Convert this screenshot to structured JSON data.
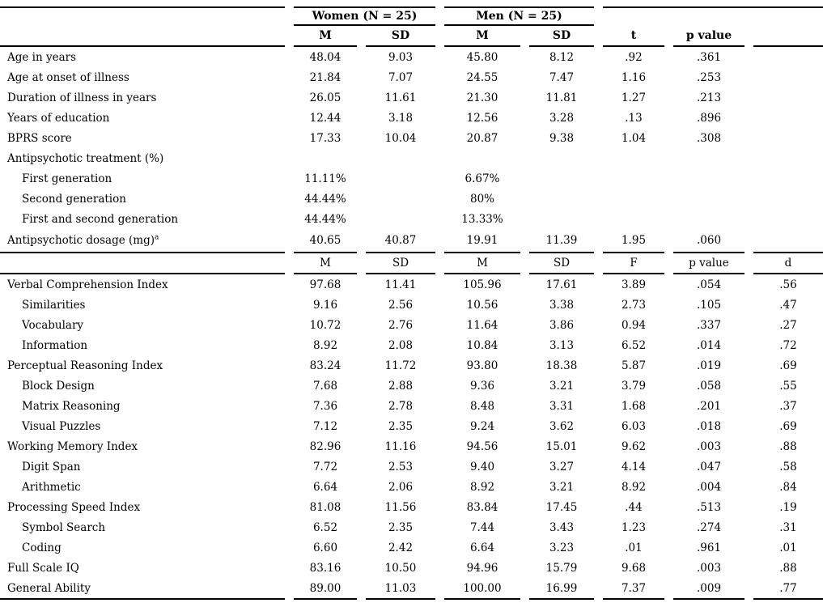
{
  "table": {
    "groups": {
      "women": "Women (N = 25)",
      "men": "Men (N = 25)"
    },
    "section1": {
      "columns": [
        "M",
        "SD",
        "M",
        "SD",
        "t",
        "p value",
        ""
      ],
      "rows": [
        {
          "label": "Age in years",
          "indent": false,
          "values": [
            "48.04",
            "9.03",
            "45.80",
            "8.12",
            ".92",
            ".361",
            ""
          ]
        },
        {
          "label": "Age at onset of illness",
          "indent": false,
          "values": [
            "21.84",
            "7.07",
            "24.55",
            "7.47",
            "1.16",
            ".253",
            ""
          ]
        },
        {
          "label": "Duration of illness in years",
          "indent": false,
          "values": [
            "26.05",
            "11.61",
            "21.30",
            "11.81",
            "1.27",
            ".213",
            ""
          ]
        },
        {
          "label": "Years of education",
          "indent": false,
          "values": [
            "12.44",
            "3.18",
            "12.56",
            "3.28",
            ".13",
            ".896",
            ""
          ]
        },
        {
          "label": "BPRS score",
          "indent": false,
          "values": [
            "17.33",
            "10.04",
            "20.87",
            "9.38",
            "1.04",
            ".308",
            ""
          ]
        },
        {
          "label": "Antipsychotic treatment (%)",
          "indent": false,
          "values": [
            "",
            "",
            "",
            "",
            "",
            "",
            ""
          ]
        },
        {
          "label": "First generation",
          "indent": true,
          "values": [
            "11.11%",
            "",
            "6.67%",
            "",
            "",
            "",
            ""
          ]
        },
        {
          "label": "Second generation",
          "indent": true,
          "values": [
            "44.44%",
            "",
            "80%",
            "",
            "",
            "",
            ""
          ]
        },
        {
          "label": "First and second generation",
          "indent": true,
          "values": [
            "44.44%",
            "",
            "13.33%",
            "",
            "",
            "",
            ""
          ]
        },
        {
          "label": "Antipsychotic dosage (mg)",
          "sup": "a",
          "indent": false,
          "values": [
            "40.65",
            "40.87",
            "19.91",
            "11.39",
            "1.95",
            ".060",
            ""
          ]
        }
      ]
    },
    "section2": {
      "columns": [
        "M",
        "SD",
        "M",
        "SD",
        "F",
        "p value",
        "d"
      ],
      "rows": [
        {
          "label": "Verbal Comprehension Index",
          "indent": false,
          "values": [
            "97.68",
            "11.41",
            "105.96",
            "17.61",
            "3.89",
            ".054",
            ".56"
          ]
        },
        {
          "label": "Similarities",
          "indent": true,
          "values": [
            "9.16",
            "2.56",
            "10.56",
            "3.38",
            "2.73",
            ".105",
            ".47"
          ]
        },
        {
          "label": "Vocabulary",
          "indent": true,
          "values": [
            "10.72",
            "2.76",
            "11.64",
            "3.86",
            "0.94",
            ".337",
            ".27"
          ]
        },
        {
          "label": "Information",
          "indent": true,
          "values": [
            "8.92",
            "2.08",
            "10.84",
            "3.13",
            "6.52",
            ".014",
            ".72"
          ]
        },
        {
          "label": "Perceptual Reasoning Index",
          "indent": false,
          "values": [
            "83.24",
            "11.72",
            "93.80",
            "18.38",
            "5.87",
            ".019",
            ".69"
          ]
        },
        {
          "label": "Block Design",
          "indent": true,
          "values": [
            "7.68",
            "2.88",
            "9.36",
            "3.21",
            "3.79",
            ".058",
            ".55"
          ]
        },
        {
          "label": "Matrix Reasoning",
          "indent": true,
          "values": [
            "7.36",
            "2.78",
            "8.48",
            "3.31",
            "1.68",
            ".201",
            ".37"
          ]
        },
        {
          "label": "Visual Puzzles",
          "indent": true,
          "values": [
            "7.12",
            "2.35",
            "9.24",
            "3.62",
            "6.03",
            ".018",
            ".69"
          ]
        },
        {
          "label": "Working Memory Index",
          "indent": false,
          "values": [
            "82.96",
            "11.16",
            "94.56",
            "15.01",
            "9.62",
            ".003",
            ".88"
          ]
        },
        {
          "label": "Digit Span",
          "indent": true,
          "values": [
            "7.72",
            "2.53",
            "9.40",
            "3.27",
            "4.14",
            ".047",
            ".58"
          ]
        },
        {
          "label": "Arithmetic",
          "indent": true,
          "values": [
            "6.64",
            "2.06",
            "8.92",
            "3.21",
            "8.92",
            ".004",
            ".84"
          ]
        },
        {
          "label": "Processing Speed Index",
          "indent": false,
          "values": [
            "81.08",
            "11.56",
            "83.84",
            "17.45",
            ".44",
            ".513",
            ".19"
          ]
        },
        {
          "label": "Symbol Search",
          "indent": true,
          "values": [
            "6.52",
            "2.35",
            "7.44",
            "3.43",
            "1.23",
            ".274",
            ".31"
          ]
        },
        {
          "label": "Coding",
          "indent": true,
          "values": [
            "6.60",
            "2.42",
            "6.64",
            "3.23",
            ".01",
            ".961",
            ".01"
          ]
        },
        {
          "label": "Full Scale IQ",
          "indent": false,
          "values": [
            "83.16",
            "10.50",
            "94.96",
            "15.79",
            "9.68",
            ".003",
            ".88"
          ]
        },
        {
          "label": "General Ability",
          "indent": false,
          "values": [
            "89.00",
            "11.03",
            "100.00",
            "16.99",
            "7.37",
            ".009",
            ".77"
          ]
        }
      ]
    }
  }
}
